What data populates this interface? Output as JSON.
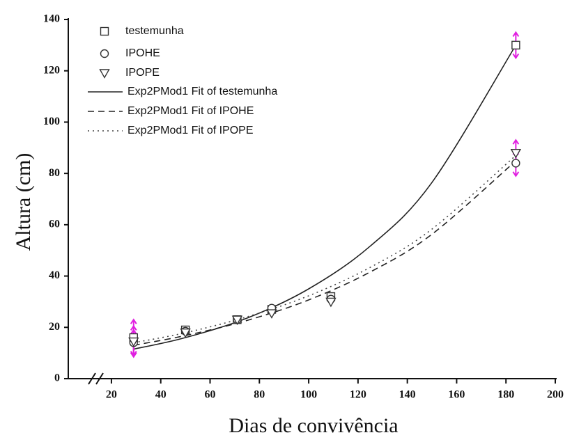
{
  "chart_data": {
    "type": "scatter",
    "x_label": "Dias de convivência",
    "y_label": "Altura (cm)",
    "xlim": [
      2.5,
      200
    ],
    "ylim": [
      0,
      140
    ],
    "xticks": [
      20,
      40,
      60,
      80,
      100,
      120,
      140,
      160,
      180,
      200
    ],
    "yticks": [
      0,
      20,
      40,
      60,
      80,
      100,
      120,
      140
    ],
    "error_color": "#e020e0",
    "x": [
      29,
      50,
      71,
      85,
      109,
      184
    ],
    "series": [
      {
        "name": "testemunha",
        "marker": "square",
        "color": "#333333",
        "values": [
          16,
          19,
          23,
          27,
          32,
          130
        ],
        "errors": [
          7,
          null,
          null,
          null,
          null,
          5
        ]
      },
      {
        "name": "IPOHE",
        "marker": "circle",
        "color": "#333333",
        "values": [
          14,
          18.5,
          23,
          27.5,
          31,
          84
        ],
        "errors": [
          5,
          null,
          null,
          null,
          null,
          5
        ]
      },
      {
        "name": "IPOPE",
        "marker": "triangle-down",
        "color": "#333333",
        "values": [
          14.5,
          18,
          23,
          25.5,
          30,
          88
        ],
        "errors": [
          6,
          null,
          null,
          null,
          null,
          5
        ]
      }
    ],
    "fit_series": [
      {
        "name": "Exp2PMod1 Fit of testemunha",
        "dash": "solid",
        "color": "#222222",
        "x": [
          29,
          50,
          75,
          100,
          125,
          150,
          184
        ],
        "values": [
          11.5,
          16.0,
          23.6,
          35.0,
          51.7,
          76.5,
          130
        ]
      },
      {
        "name": "Exp2PMod1 Fit of IPOHE",
        "dash": "dashed",
        "color": "#222222",
        "x": [
          29,
          50,
          75,
          100,
          125,
          150,
          184
        ],
        "values": [
          13,
          16.8,
          22.7,
          30.7,
          41.6,
          56.3,
          84.9
        ]
      },
      {
        "name": "Exp2PMod1 Fit of IPOPE",
        "dash": "dotted",
        "color": "#444444",
        "x": [
          29,
          50,
          75,
          100,
          125,
          150,
          184
        ],
        "values": [
          14,
          17.9,
          24.1,
          32.3,
          43.4,
          58.3,
          87.0
        ]
      }
    ]
  }
}
